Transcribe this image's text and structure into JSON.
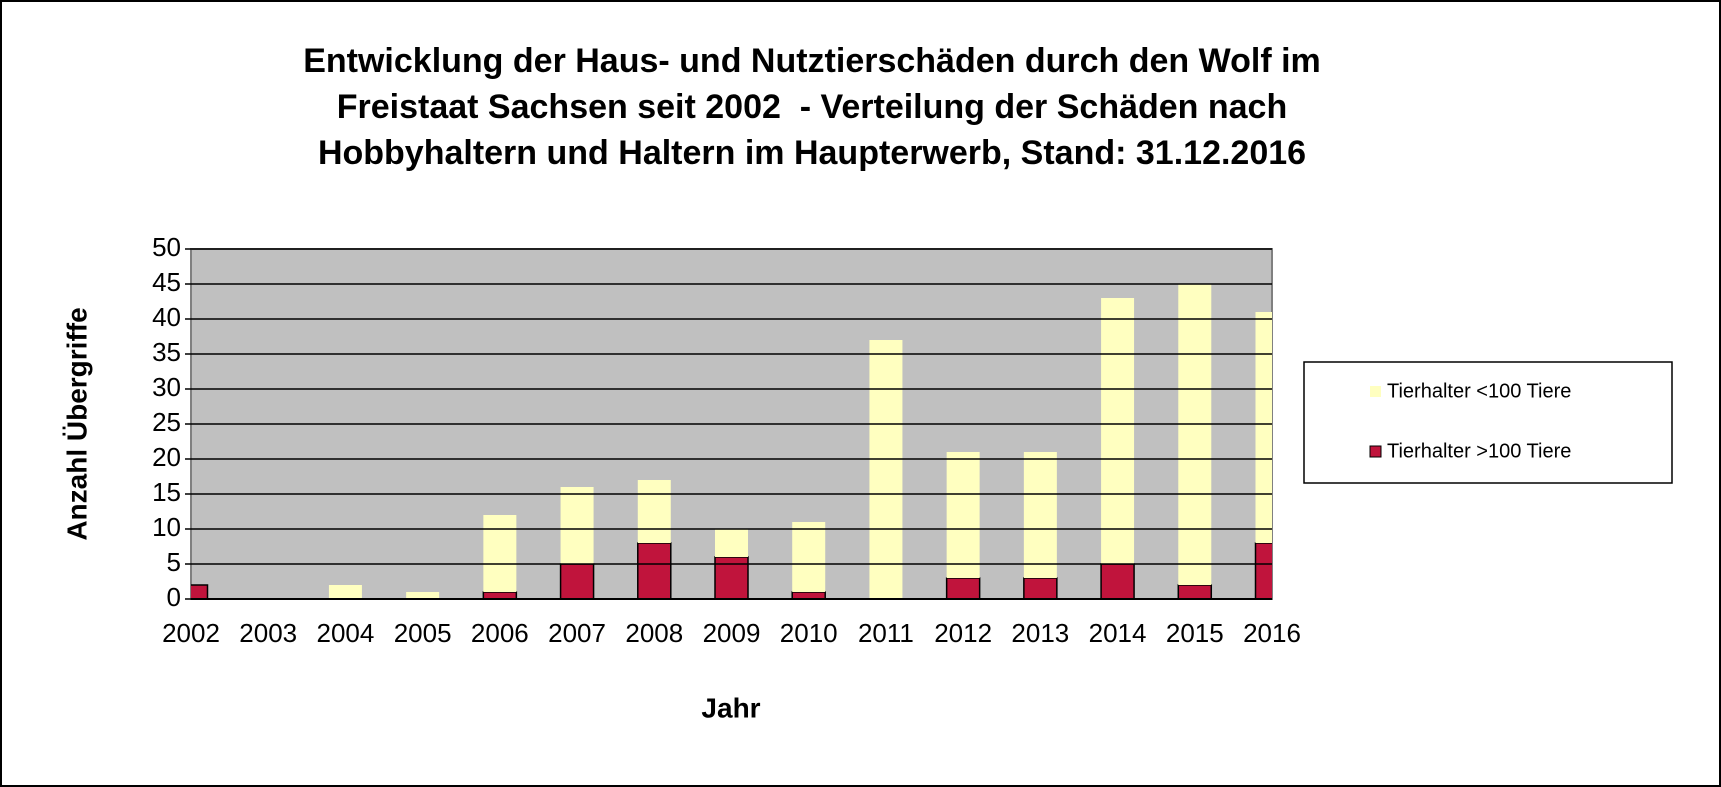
{
  "chart_data": {
    "type": "stacked_bar",
    "title": [
      "Entwicklung der Haus- und Nutztierschäden durch den Wolf im",
      "Freistaat Sachsen seit 2002  - Verteilung der Schäden nach",
      "Hobbyhaltern und Haltern im Haupterwerb, Stand: 31.12.2016"
    ],
    "xlabel": "Jahr",
    "ylabel": "Anzahl Übergriffe",
    "categories": [
      "2002",
      "2003",
      "2004",
      "2005",
      "2006",
      "2007",
      "2008",
      "2009",
      "2010",
      "2011",
      "2012",
      "2013",
      "2014",
      "2015",
      "2016"
    ],
    "series": [
      {
        "name": "Tierhalter >100 Tiere",
        "color": "#c0143c",
        "values": [
          2,
          0,
          0,
          0,
          1,
          5,
          8,
          6,
          1,
          0,
          3,
          3,
          5,
          2,
          8
        ]
      },
      {
        "name": "Tierhalter <100 Tiere",
        "color": "#ffffc0",
        "values": [
          0,
          0,
          2,
          1,
          11,
          11,
          9,
          4,
          10,
          37,
          18,
          18,
          38,
          43,
          33
        ]
      }
    ],
    "ylim": [
      0,
      50
    ],
    "yticks": [
      0,
      5,
      10,
      15,
      20,
      25,
      30,
      35,
      40,
      45,
      50
    ],
    "grid": true,
    "legend": "right"
  }
}
